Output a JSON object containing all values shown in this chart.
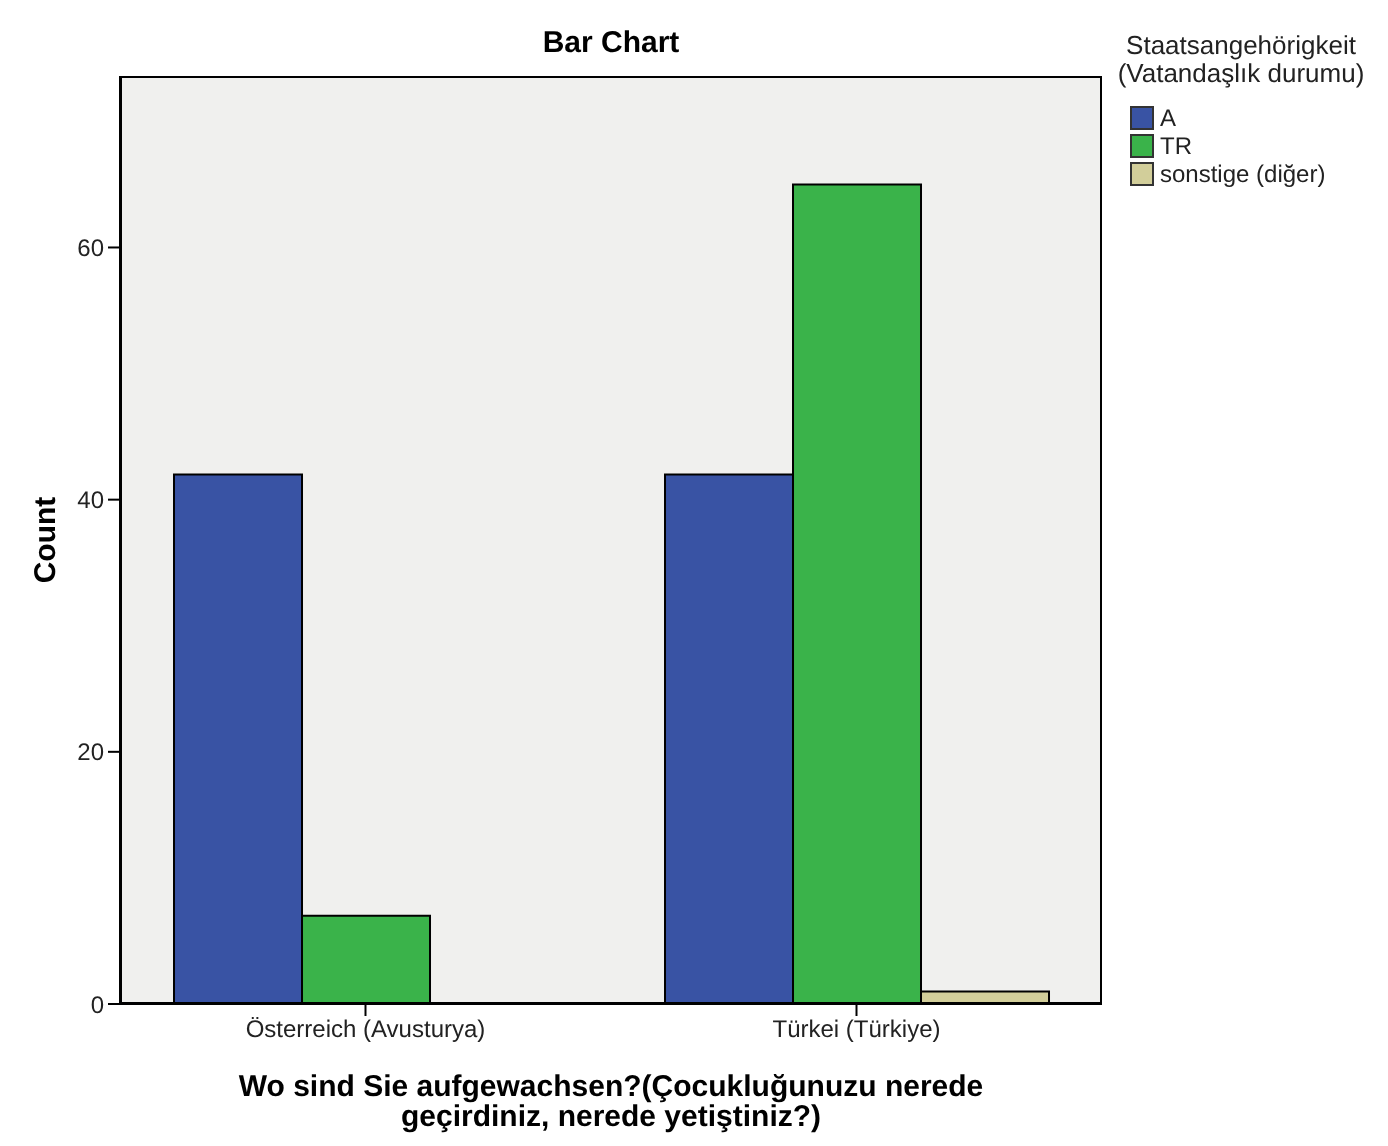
{
  "chart_data": {
    "type": "bar",
    "title": "Bar Chart",
    "xlabel": "Wo sind Sie aufgewachsen?(Çocukluğunuzu nerede geçirdiniz, nerede yetiştiniz?)",
    "ylabel": "Count",
    "legend_title": "Staatsangehörigkeit (Vatandaşlık durumu)",
    "categories": [
      "Österreich (Avusturya)",
      "Türkei (Türkiye)"
    ],
    "series": [
      {
        "name": "A",
        "color": "#3953a4",
        "values": [
          42,
          42
        ]
      },
      {
        "name": "TR",
        "color": "#3ab34a",
        "values": [
          7,
          65
        ]
      },
      {
        "name": "sonstige (diğer)",
        "color": "#d2ce9a",
        "values": [
          null,
          1
        ]
      }
    ],
    "ylim": [
      0,
      73.6
    ],
    "yticks": [
      0,
      20,
      40,
      60
    ],
    "grid": false,
    "legend": "right"
  }
}
